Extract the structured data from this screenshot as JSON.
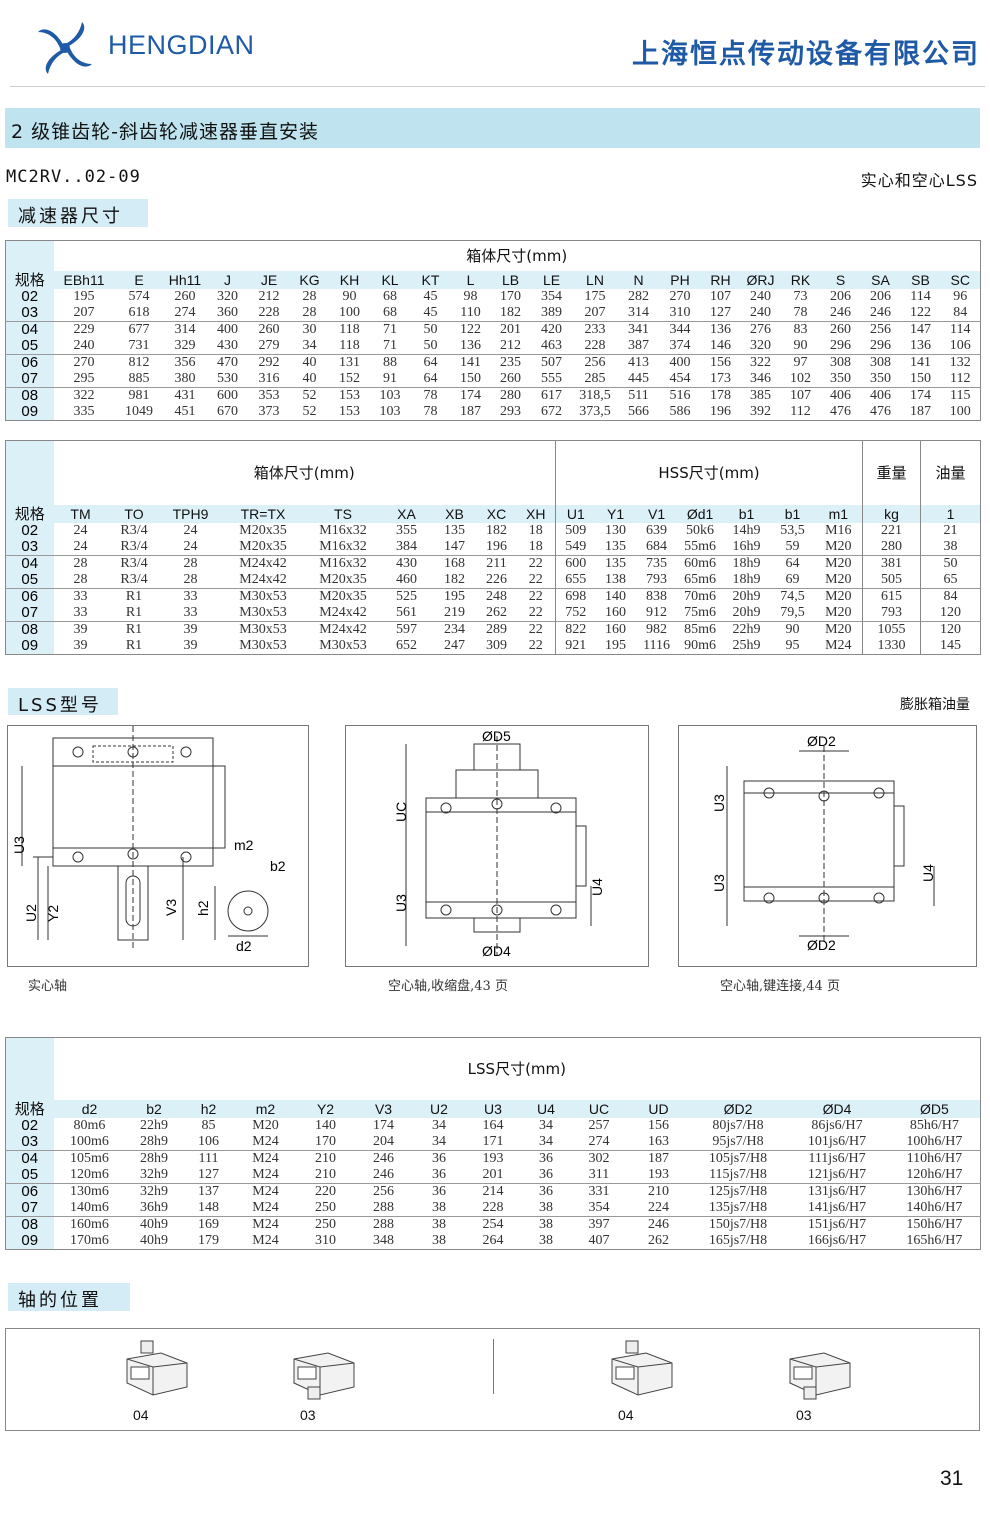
{
  "header": {
    "brand": "HENGDIAN",
    "company": "上海恒点传动设备有限公司",
    "brand_color": "#1f5aa6"
  },
  "title": "2 级锥齿轮-斜齿轮减速器垂直安装",
  "model": "MC2RV..02-09",
  "shaft_note": "实心和空心LSS",
  "section_reducer": "减速器尺寸",
  "table1": {
    "group_header": "箱体尺寸(mm)",
    "columns": [
      "规格",
      "EBh11",
      "E",
      "Hh11",
      "J",
      "JE",
      "KG",
      "KH",
      "KL",
      "KT",
      "L",
      "LB",
      "LE",
      "LN",
      "N",
      "PH",
      "RH",
      "ØRJ",
      "RK",
      "S",
      "SA",
      "SB",
      "SC"
    ],
    "rows": [
      [
        "02",
        "195",
        "574",
        "260",
        "320",
        "212",
        "28",
        "90",
        "68",
        "45",
        "98",
        "170",
        "354",
        "175",
        "282",
        "270",
        "107",
        "240",
        "73",
        "206",
        "206",
        "114",
        "96"
      ],
      [
        "03",
        "207",
        "618",
        "274",
        "360",
        "228",
        "28",
        "100",
        "68",
        "45",
        "110",
        "182",
        "389",
        "207",
        "314",
        "310",
        "127",
        "240",
        "78",
        "246",
        "246",
        "122",
        "84"
      ],
      [
        "04",
        "229",
        "677",
        "314",
        "400",
        "260",
        "30",
        "118",
        "71",
        "50",
        "122",
        "201",
        "420",
        "233",
        "341",
        "344",
        "136",
        "276",
        "83",
        "260",
        "256",
        "147",
        "114"
      ],
      [
        "05",
        "240",
        "731",
        "329",
        "430",
        "279",
        "34",
        "118",
        "71",
        "50",
        "136",
        "212",
        "463",
        "228",
        "387",
        "374",
        "146",
        "320",
        "90",
        "296",
        "296",
        "136",
        "106"
      ],
      [
        "06",
        "270",
        "812",
        "356",
        "470",
        "292",
        "40",
        "131",
        "88",
        "64",
        "141",
        "235",
        "507",
        "256",
        "413",
        "400",
        "156",
        "322",
        "97",
        "308",
        "308",
        "141",
        "132"
      ],
      [
        "07",
        "295",
        "885",
        "380",
        "530",
        "316",
        "40",
        "152",
        "91",
        "64",
        "150",
        "260",
        "555",
        "285",
        "445",
        "454",
        "173",
        "346",
        "102",
        "350",
        "350",
        "150",
        "112"
      ],
      [
        "08",
        "322",
        "981",
        "431",
        "600",
        "353",
        "52",
        "153",
        "103",
        "78",
        "174",
        "280",
        "617",
        "318,5",
        "511",
        "516",
        "178",
        "385",
        "107",
        "406",
        "406",
        "174",
        "115"
      ],
      [
        "09",
        "335",
        "1049",
        "451",
        "670",
        "373",
        "52",
        "153",
        "103",
        "78",
        "187",
        "293",
        "672",
        "373,5",
        "566",
        "586",
        "196",
        "392",
        "112",
        "476",
        "476",
        "187",
        "100"
      ]
    ]
  },
  "table2": {
    "group_header_housing": "箱体尺寸(mm)",
    "group_header_hss": "HSS尺寸(mm)",
    "group_header_weight": "重量",
    "group_header_oil": "油量",
    "columns": [
      "规格",
      "TM",
      "TO",
      "TPH9",
      "TR=TX",
      "TS",
      "XA",
      "XB",
      "XC",
      "XH",
      "U1",
      "Y1",
      "V1",
      "Ød1",
      "b1",
      "b1",
      "m1",
      "kg",
      "1"
    ],
    "rows": [
      [
        "02",
        "24",
        "R3/4",
        "24",
        "M20x35",
        "M16x32",
        "355",
        "135",
        "182",
        "18",
        "509",
        "130",
        "639",
        "50k6",
        "14h9",
        "53,5",
        "M16",
        "221",
        "21"
      ],
      [
        "03",
        "24",
        "R3/4",
        "24",
        "M20x35",
        "M16x32",
        "384",
        "147",
        "196",
        "18",
        "549",
        "135",
        "684",
        "55m6",
        "16h9",
        "59",
        "M20",
        "280",
        "38"
      ],
      [
        "04",
        "28",
        "R3/4",
        "28",
        "M24x42",
        "M16x32",
        "430",
        "168",
        "211",
        "22",
        "600",
        "135",
        "735",
        "60m6",
        "18h9",
        "64",
        "M20",
        "381",
        "50"
      ],
      [
        "05",
        "28",
        "R3/4",
        "28",
        "M24x42",
        "M20x35",
        "460",
        "182",
        "226",
        "22",
        "655",
        "138",
        "793",
        "65m6",
        "18h9",
        "69",
        "M20",
        "505",
        "65"
      ],
      [
        "06",
        "33",
        "R1",
        "33",
        "M30x53",
        "M20x35",
        "525",
        "195",
        "248",
        "22",
        "698",
        "140",
        "838",
        "70m6",
        "20h9",
        "74,5",
        "M20",
        "615",
        "84"
      ],
      [
        "07",
        "33",
        "R1",
        "33",
        "M30x53",
        "M24x42",
        "561",
        "219",
        "262",
        "22",
        "752",
        "160",
        "912",
        "75m6",
        "20h9",
        "79,5",
        "M20",
        "793",
        "120"
      ],
      [
        "08",
        "39",
        "R1",
        "39",
        "M30x53",
        "M24x42",
        "597",
        "234",
        "289",
        "22",
        "822",
        "160",
        "982",
        "85m6",
        "22h9",
        "90",
        "M20",
        "1055",
        "120"
      ],
      [
        "09",
        "39",
        "R1",
        "39",
        "M30x53",
        "M30x53",
        "652",
        "247",
        "309",
        "22",
        "921",
        "195",
        "1116",
        "90m6",
        "25h9",
        "95",
        "M24",
        "1330",
        "145"
      ]
    ]
  },
  "section_lss": "LSS型号",
  "expansion_note": "膨胀箱油量",
  "drawings": {
    "solid": {
      "caption": "实心轴",
      "labels": {
        "u3": "U3",
        "u2": "U2",
        "y2": "Y2",
        "v3": "V3",
        "h2": "h2",
        "m2": "m2",
        "b2": "b2",
        "d2": "d2"
      }
    },
    "shrink": {
      "caption": "空心轴,收缩盘,43 页",
      "labels": {
        "d5": "ØD5",
        "uc": "UC",
        "u3": "U3",
        "u4": "U4",
        "d4": "ØD4"
      }
    },
    "keyed": {
      "caption": "空心轴,键连接,44 页",
      "labels": {
        "d2_top": "ØD2",
        "u3_a": "U3",
        "u3_b": "U3",
        "u4": "U4",
        "d2_bottom": "ØD2"
      }
    }
  },
  "table3": {
    "group_header": "LSS尺寸(mm)",
    "columns": [
      "规格",
      "d2",
      "b2",
      "h2",
      "m2",
      "Y2",
      "V3",
      "U2",
      "U3",
      "U4",
      "UC",
      "UD",
      "ØD2",
      "ØD4",
      "ØD5"
    ],
    "rows": [
      [
        "02",
        "80m6",
        "22h9",
        "85",
        "M20",
        "140",
        "174",
        "34",
        "164",
        "34",
        "257",
        "156",
        "80js7/H8",
        "86js6/H7",
        "85h6/H7"
      ],
      [
        "03",
        "100m6",
        "28h9",
        "106",
        "M24",
        "170",
        "204",
        "34",
        "171",
        "34",
        "274",
        "163",
        "95js7/H8",
        "101js6/H7",
        "100h6/H7"
      ],
      [
        "04",
        "105m6",
        "28h9",
        "111",
        "M24",
        "210",
        "246",
        "36",
        "193",
        "36",
        "302",
        "187",
        "105js7/H8",
        "111js6/H7",
        "110h6/H7"
      ],
      [
        "05",
        "120m6",
        "32h9",
        "127",
        "M24",
        "210",
        "246",
        "36",
        "201",
        "36",
        "311",
        "193",
        "115js7/H8",
        "121js6/H7",
        "120h6/H7"
      ],
      [
        "06",
        "130m6",
        "32h9",
        "137",
        "M24",
        "220",
        "256",
        "36",
        "214",
        "36",
        "331",
        "210",
        "125js7/H8",
        "131js6/H7",
        "130h6/H7"
      ],
      [
        "07",
        "140m6",
        "36h9",
        "148",
        "M24",
        "250",
        "288",
        "38",
        "228",
        "38",
        "354",
        "224",
        "135js7/H8",
        "141js6/H7",
        "140h6/H7"
      ],
      [
        "08",
        "160m6",
        "40h9",
        "169",
        "M24",
        "250",
        "288",
        "38",
        "254",
        "38",
        "397",
        "246",
        "150js7/H8",
        "151js6/H7",
        "150h6/H7"
      ],
      [
        "09",
        "170m6",
        "40h9",
        "179",
        "M24",
        "310",
        "348",
        "38",
        "264",
        "38",
        "407",
        "262",
        "165js7/H8",
        "166js6/H7",
        "165h6/H7"
      ]
    ]
  },
  "section_shaft": "轴的位置",
  "shaft_positions": [
    "04",
    "03",
    "04",
    "03"
  ],
  "page_number": "31"
}
